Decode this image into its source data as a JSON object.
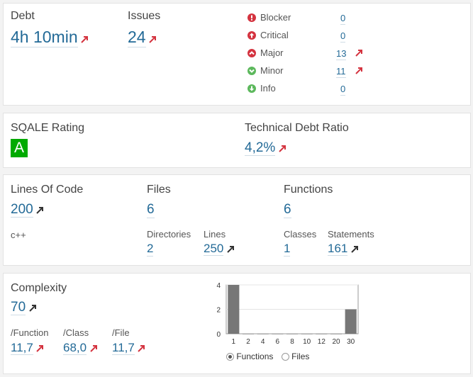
{
  "debt": {
    "label": "Debt",
    "value": "4h 10min"
  },
  "issues": {
    "label": "Issues",
    "value": "24",
    "severities": [
      {
        "label": "Blocker",
        "count": "0",
        "icon": "blocker-icon",
        "color": "#d4333f"
      },
      {
        "label": "Critical",
        "count": "0",
        "icon": "critical-icon",
        "color": "#d4333f"
      },
      {
        "label": "Major",
        "count": "13",
        "icon": "major-icon",
        "color": "#d4333f"
      },
      {
        "label": "Minor",
        "count": "11",
        "icon": "minor-icon",
        "color": "#5cb85c"
      },
      {
        "label": "Info",
        "count": "0",
        "icon": "info-icon",
        "color": "#5cb85c"
      }
    ]
  },
  "sqale": {
    "label": "SQALE Rating",
    "value": "A",
    "color": "#00aa00"
  },
  "debt_ratio": {
    "label": "Technical Debt Ratio",
    "value": "4,2%"
  },
  "size": {
    "loc": {
      "label": "Lines Of Code",
      "value": "200",
      "language": "c++"
    },
    "files": {
      "label": "Files",
      "value": "6"
    },
    "directories": {
      "label": "Directories",
      "value": "2"
    },
    "lines": {
      "label": "Lines",
      "value": "250"
    },
    "functions": {
      "label": "Functions",
      "value": "6"
    },
    "classes": {
      "label": "Classes",
      "value": "1"
    },
    "statements": {
      "label": "Statements",
      "value": "161"
    }
  },
  "complexity": {
    "label": "Complexity",
    "value": "70",
    "per_function": {
      "label": "/Function",
      "value": "11,7"
    },
    "per_class": {
      "label": "/Class",
      "value": "68,0"
    },
    "per_file": {
      "label": "/File",
      "value": "11,7"
    },
    "radio": {
      "functions": "Functions",
      "files": "Files",
      "selected": "functions"
    }
  },
  "colors": {
    "link": "#236a97",
    "trend_up_bad": "#d4333f",
    "trend_up_neutral": "#333333",
    "bar": "#777777"
  },
  "chart_data": {
    "type": "bar",
    "categories": [
      "1",
      "2",
      "4",
      "6",
      "8",
      "10",
      "12",
      "20",
      "30"
    ],
    "values": [
      4,
      0,
      0,
      0,
      0,
      0,
      0,
      0,
      2
    ],
    "ylim": [
      0,
      4
    ],
    "yticks": [
      "0",
      "2",
      "4"
    ],
    "grid": true
  }
}
